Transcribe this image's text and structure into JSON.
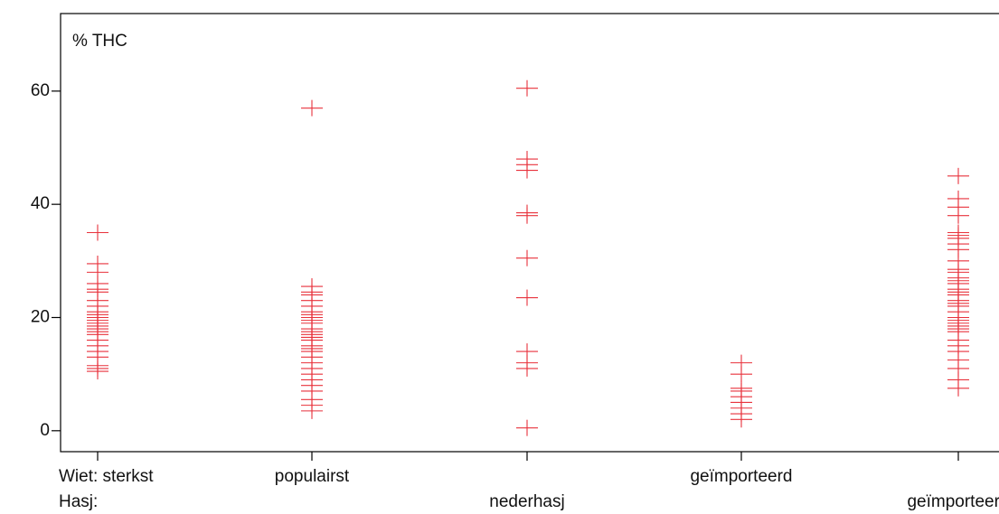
{
  "chart_data": {
    "type": "scatter",
    "y_label": "% THC",
    "x_labels_row1": [
      "Wiet: sterkst",
      "populairst",
      null,
      "geïmporteerd",
      null
    ],
    "x_labels_row2": [
      "Hasj:",
      null,
      "nederhasj",
      null,
      "geïmporteerd"
    ],
    "color": "#e8323c",
    "points": [
      [
        35,
        29.5,
        28,
        26,
        25,
        24.5,
        23,
        22,
        21,
        20.5,
        20,
        19.5,
        19,
        18.5,
        18,
        17.5,
        17,
        16,
        15,
        14,
        13,
        11.5,
        11,
        10.5
      ],
      [
        57,
        25.5,
        24.5,
        24,
        23,
        22,
        21,
        20.5,
        20,
        19.5,
        19,
        18,
        17.5,
        17,
        16.5,
        16,
        15,
        14.5,
        14,
        13,
        12,
        11,
        10,
        9,
        8,
        7,
        5.5,
        4.5,
        3.5
      ],
      [
        60.5,
        48,
        47,
        46,
        38.5,
        38,
        30.5,
        23.5,
        14,
        12,
        11,
        0.5
      ],
      [
        12,
        10,
        7.5,
        7,
        6,
        5,
        4,
        3,
        2
      ],
      [
        45,
        41,
        39.5,
        38,
        35,
        34.5,
        34,
        33,
        32,
        30,
        28.5,
        28,
        27,
        26.5,
        26,
        25,
        24.5,
        24,
        23,
        22.5,
        22,
        21,
        20,
        19.5,
        19,
        18.5,
        18,
        17.5,
        16,
        15,
        14,
        12.5,
        11,
        9,
        7.5
      ]
    ],
    "ylim": [
      -3.7,
      73.7
    ],
    "yticks": [
      0,
      20,
      40,
      60
    ]
  }
}
